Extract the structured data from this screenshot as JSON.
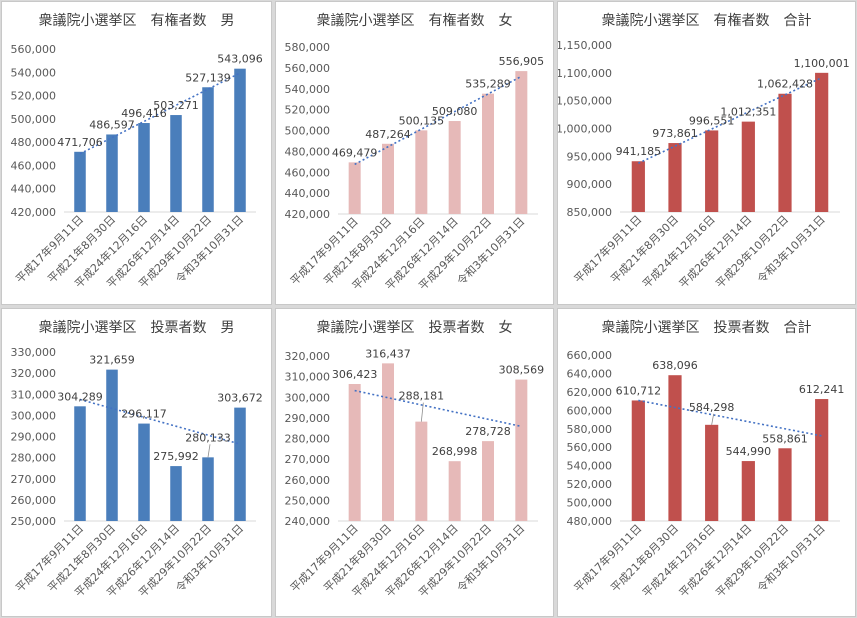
{
  "chart_data": [
    {
      "type": "bar",
      "title": "衆議院小選挙区　有権者数　男",
      "categories": [
        "平成17年9月11日",
        "平成21年8月30日",
        "平成24年12月16日",
        "平成26年12月14日",
        "平成29年10月22日",
        "令和3年10月31日"
      ],
      "values": [
        471706,
        486597,
        496416,
        503271,
        527139,
        543096
      ],
      "data_labels": [
        "471,706",
        "486,597",
        "496,416",
        "503,271",
        "527,139",
        "543,096"
      ],
      "ylim": [
        420000,
        560000
      ],
      "ytick_step": 20000,
      "yticks": [
        "420,000",
        "440,000",
        "460,000",
        "480,000",
        "500,000",
        "520,000",
        "540,000",
        "560,000"
      ],
      "color": "#4a7ebb",
      "trendline": "linear",
      "trend_color": "#4472c4",
      "grid": false,
      "legend": "none"
    },
    {
      "type": "bar",
      "title": "衆議院小選挙区　有権者数　女",
      "categories": [
        "平成17年9月11日",
        "平成21年8月30日",
        "平成24年12月16日",
        "平成26年12月14日",
        "平成29年10月22日",
        "令和3年10月31日"
      ],
      "values": [
        469479,
        487264,
        500135,
        509080,
        535289,
        556905
      ],
      "data_labels": [
        "469,479",
        "487,264",
        "500,135",
        "509,080",
        "535,289",
        "556,905"
      ],
      "ylim": [
        420000,
        580000
      ],
      "ytick_step": 20000,
      "yticks": [
        "420,000",
        "440,000",
        "460,000",
        "480,000",
        "500,000",
        "520,000",
        "540,000",
        "560,000",
        "580,000"
      ],
      "color": "#e6b9b8",
      "trendline": "linear",
      "trend_color": "#4472c4",
      "grid": false,
      "legend": "none"
    },
    {
      "type": "bar",
      "title": "衆議院小選挙区　有権者数　合計",
      "categories": [
        "平成17年9月11日",
        "平成21年8月30日",
        "平成24年12月16日",
        "平成26年12月14日",
        "平成29年10月22日",
        "令和3年10月31日"
      ],
      "values": [
        941185,
        973861,
        996551,
        1012351,
        1062428,
        1100001
      ],
      "data_labels": [
        "941,185",
        "973,861",
        "996,551",
        "1,012,351",
        "1,062,428",
        "1,100,001"
      ],
      "ylim": [
        850000,
        1150000
      ],
      "ytick_step": 50000,
      "yticks": [
        "850,000",
        "900,000",
        "950,000",
        "1,000,000",
        "1,050,000",
        "1,100,000",
        "1,150,000"
      ],
      "color": "#c0504d",
      "trendline": "linear",
      "trend_color": "#4472c4",
      "grid": false,
      "legend": "none"
    },
    {
      "type": "bar",
      "title": "衆議院小選挙区　投票者数　男",
      "categories": [
        "平成17年9月11日",
        "平成21年8月30日",
        "平成24年12月16日",
        "平成26年12月14日",
        "平成29年10月22日",
        "令和3年10月31日"
      ],
      "values": [
        304289,
        321659,
        296117,
        275992,
        280133,
        303672
      ],
      "data_labels": [
        "304,289",
        "321,659",
        "296,117",
        "275,992",
        "280,133",
        "303,672"
      ],
      "ylim": [
        250000,
        330000
      ],
      "ytick_step": 10000,
      "yticks": [
        "250,000",
        "260,000",
        "270,000",
        "280,000",
        "290,000",
        "300,000",
        "310,000",
        "320,000",
        "330,000"
      ],
      "color": "#4a7ebb",
      "trendline": "linear",
      "trend_color": "#4472c4",
      "grid": false,
      "legend": "none"
    },
    {
      "type": "bar",
      "title": "衆議院小選挙区　投票者数　女",
      "categories": [
        "平成17年9月11日",
        "平成21年8月30日",
        "平成24年12月16日",
        "平成26年12月14日",
        "平成29年10月22日",
        "令和3年10月31日"
      ],
      "values": [
        306423,
        316437,
        288181,
        268998,
        278728,
        308569
      ],
      "data_labels": [
        "306,423",
        "316,437",
        "288,181",
        "268,998",
        "278,728",
        "308,569"
      ],
      "ylim": [
        240000,
        320000
      ],
      "ytick_step": 10000,
      "yticks": [
        "240,000",
        "250,000",
        "260,000",
        "270,000",
        "280,000",
        "290,000",
        "300,000",
        "310,000",
        "320,000"
      ],
      "color": "#e6b9b8",
      "trendline": "linear",
      "trend_color": "#4472c4",
      "grid": false,
      "legend": "none"
    },
    {
      "type": "bar",
      "title": "衆議院小選挙区　投票者数　合計",
      "categories": [
        "平成17年9月11日",
        "平成21年8月30日",
        "平成24年12月16日",
        "平成26年12月14日",
        "平成29年10月22日",
        "令和3年10月31日"
      ],
      "values": [
        610712,
        638096,
        584298,
        544990,
        558861,
        612241
      ],
      "data_labels": [
        "610,712",
        "638,096",
        "584,298",
        "544,990",
        "558,861",
        "612,241"
      ],
      "ylim": [
        480000,
        660000
      ],
      "ytick_step": 20000,
      "yticks": [
        "480,000",
        "500,000",
        "520,000",
        "540,000",
        "560,000",
        "580,000",
        "600,000",
        "620,000",
        "640,000",
        "660,000"
      ],
      "color": "#c0504d",
      "trendline": "linear",
      "trend_color": "#4472c4",
      "grid": false,
      "legend": "none"
    }
  ]
}
